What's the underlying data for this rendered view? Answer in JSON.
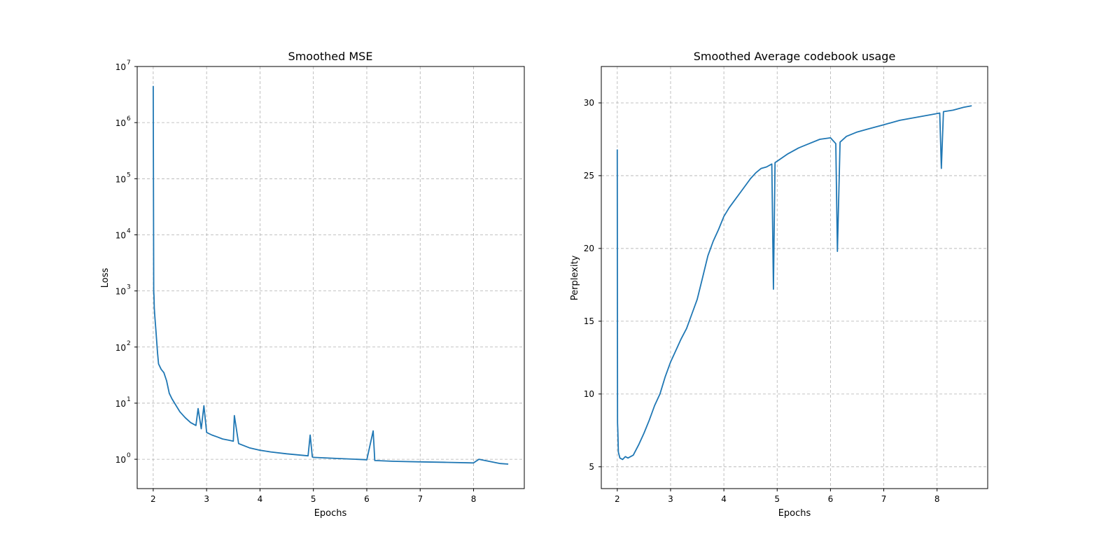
{
  "chart_data": [
    {
      "type": "line",
      "title": "Smoothed MSE",
      "xlabel": "Epochs",
      "ylabel": "Loss",
      "yscale": "log",
      "xlim": [
        1.7,
        8.95
      ],
      "ylim": [
        0.3,
        10000000
      ],
      "xticks": [
        2,
        3,
        4,
        5,
        6,
        7,
        8
      ],
      "yticks": [
        {
          "base": "10",
          "exp": "0"
        },
        {
          "base": "10",
          "exp": "1"
        },
        {
          "base": "10",
          "exp": "2"
        },
        {
          "base": "10",
          "exp": "3"
        },
        {
          "base": "10",
          "exp": "4"
        },
        {
          "base": "10",
          "exp": "5"
        },
        {
          "base": "10",
          "exp": "6"
        },
        {
          "base": "10",
          "exp": "7"
        }
      ],
      "grid": true,
      "line_color": "#1f77b4",
      "series": [
        {
          "x": [
            2.0,
            2.01,
            2.015,
            2.02,
            2.03,
            2.05,
            2.08,
            2.1,
            2.15,
            2.2,
            2.25,
            2.3,
            2.35,
            2.4,
            2.5,
            2.6,
            2.7,
            2.8,
            2.84,
            2.9,
            2.95,
            3.0,
            3.1,
            3.2,
            3.3,
            3.4,
            3.5,
            3.52,
            3.6,
            3.8,
            4.0,
            4.2,
            4.5,
            4.9,
            4.94,
            4.98,
            5.0,
            5.5,
            6.0,
            6.12,
            6.15,
            6.5,
            7.0,
            7.5,
            8.0,
            8.1,
            8.5,
            8.65
          ],
          "y": [
            4500000,
            1000,
            800,
            500,
            350,
            200,
            80,
            50,
            40,
            35,
            25,
            15,
            12,
            10,
            7,
            5.5,
            4.5,
            4.0,
            8.0,
            3.5,
            9.0,
            3.0,
            2.7,
            2.5,
            2.3,
            2.2,
            2.1,
            6.0,
            1.9,
            1.6,
            1.45,
            1.35,
            1.25,
            1.15,
            2.7,
            1.1,
            1.08,
            1.03,
            0.98,
            3.2,
            0.95,
            0.92,
            0.9,
            0.88,
            0.86,
            1.0,
            0.84,
            0.82
          ]
        }
      ]
    },
    {
      "type": "line",
      "title": "Smoothed Average codebook usage",
      "xlabel": "Epochs",
      "ylabel": "Perplexity",
      "xlim": [
        1.7,
        8.95
      ],
      "ylim": [
        3.5,
        32.5
      ],
      "xticks": [
        2,
        3,
        4,
        5,
        6,
        7,
        8
      ],
      "yticks": [
        5,
        10,
        15,
        20,
        25,
        30
      ],
      "grid": true,
      "line_color": "#1f77b4",
      "series": [
        {
          "x": [
            2.0,
            2.005,
            2.01,
            2.02,
            2.05,
            2.1,
            2.15,
            2.2,
            2.3,
            2.4,
            2.5,
            2.6,
            2.7,
            2.8,
            2.9,
            3.0,
            3.1,
            3.2,
            3.3,
            3.4,
            3.5,
            3.6,
            3.7,
            3.8,
            3.9,
            4.0,
            4.1,
            4.2,
            4.3,
            4.4,
            4.5,
            4.6,
            4.7,
            4.8,
            4.9,
            4.93,
            4.96,
            5.0,
            5.2,
            5.4,
            5.6,
            5.8,
            6.0,
            6.1,
            6.13,
            6.18,
            6.3,
            6.5,
            6.7,
            7.0,
            7.3,
            7.6,
            7.9,
            8.05,
            8.08,
            8.12,
            8.3,
            8.5,
            8.65
          ],
          "y": [
            26.8,
            8.0,
            7.5,
            6.0,
            5.6,
            5.5,
            5.7,
            5.6,
            5.8,
            6.5,
            7.3,
            8.2,
            9.2,
            10.0,
            11.2,
            12.2,
            13.0,
            13.8,
            14.5,
            15.5,
            16.5,
            18.0,
            19.5,
            20.5,
            21.3,
            22.2,
            22.8,
            23.3,
            23.8,
            24.3,
            24.8,
            25.2,
            25.5,
            25.6,
            25.8,
            17.2,
            25.9,
            26.0,
            26.5,
            26.9,
            27.2,
            27.5,
            27.6,
            27.2,
            19.8,
            27.3,
            27.7,
            28.0,
            28.2,
            28.5,
            28.8,
            29.0,
            29.2,
            29.3,
            25.5,
            29.4,
            29.5,
            29.7,
            29.8
          ]
        }
      ]
    }
  ]
}
